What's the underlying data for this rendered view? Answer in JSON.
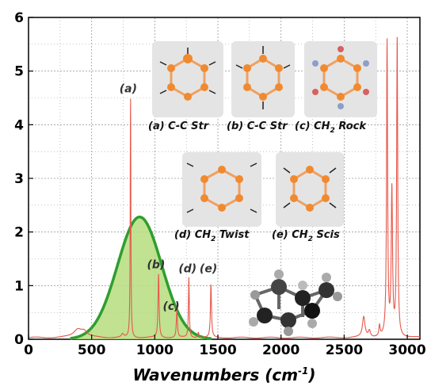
{
  "chart_data": {
    "type": "line",
    "xlabel": "Wavenumbers (cm",
    "xlabel_sup": "-1",
    "xlabel_close": ")",
    "ylabel": "",
    "xlim": [
      0,
      3100
    ],
    "ylim": [
      0,
      6
    ],
    "xticks": [
      0,
      500,
      1000,
      1500,
      2000,
      2500,
      3000
    ],
    "yticks": [
      0,
      1,
      2,
      3,
      4,
      5,
      6
    ],
    "grid": true,
    "colors": {
      "spectrum": "#e8574a",
      "band_fill": "#b5dd7e",
      "band_line": "#2e9e2e",
      "grid": "#9a9a9a"
    },
    "series": [
      {
        "kind": "spectrum",
        "baseline": 0.03,
        "peaks": [
          {
            "x": 390,
            "h": 0.15,
            "w": 40
          },
          {
            "x": 440,
            "h": 0.1,
            "w": 30
          },
          {
            "x": 745,
            "h": 0.06,
            "w": 10
          },
          {
            "x": 808,
            "h": 4.45,
            "w": 3
          },
          {
            "x": 1030,
            "h": 1.18,
            "w": 5
          },
          {
            "x": 1175,
            "h": 0.52,
            "w": 5
          },
          {
            "x": 1270,
            "h": 1.12,
            "w": 4
          },
          {
            "x": 1345,
            "h": 0.1,
            "w": 6
          },
          {
            "x": 1445,
            "h": 0.98,
            "w": 5
          },
          {
            "x": 2655,
            "h": 0.38,
            "w": 12
          },
          {
            "x": 2700,
            "h": 0.12,
            "w": 10
          },
          {
            "x": 2780,
            "h": 0.2,
            "w": 6
          },
          {
            "x": 2840,
            "h": 5.48,
            "w": 5
          },
          {
            "x": 2878,
            "h": 2.7,
            "w": 6
          },
          {
            "x": 2920,
            "h": 5.53,
            "w": 5
          }
        ]
      },
      {
        "kind": "band",
        "center": 880,
        "height": 2.28,
        "sigma": 175,
        "x_range": [
          330,
          1450
        ]
      }
    ],
    "peak_labels": [
      {
        "text": "(a)",
        "x": 790,
        "y": 4.6
      },
      {
        "text": "(b)",
        "x": 1010,
        "y": 1.32
      },
      {
        "text": "(c)",
        "x": 1130,
        "y": 0.55
      },
      {
        "text": "(d)",
        "x": 1260,
        "y": 1.25
      },
      {
        "text": "(e)",
        "x": 1425,
        "y": 1.25
      }
    ],
    "modes": [
      {
        "label": "(a) C-C Str",
        "icon": "c-c-stretch-mode-1-icon"
      },
      {
        "label": "(b) C-C Str",
        "icon": "c-c-stretch-mode-2-icon"
      },
      {
        "label": "(c) CH",
        "sub": "2",
        "tail": " Rock",
        "icon": "ch2-rock-mode-icon"
      },
      {
        "label": "(d) CH",
        "sub": "2",
        "tail": " Twist",
        "icon": "ch2-twist-mode-icon"
      },
      {
        "label": "(e) CH",
        "sub": "2",
        "tail": " Scis",
        "icon": "ch2-scissor-mode-icon"
      }
    ],
    "molecule_icon": "cyclohexane-ball-and-stick-model-icon"
  }
}
